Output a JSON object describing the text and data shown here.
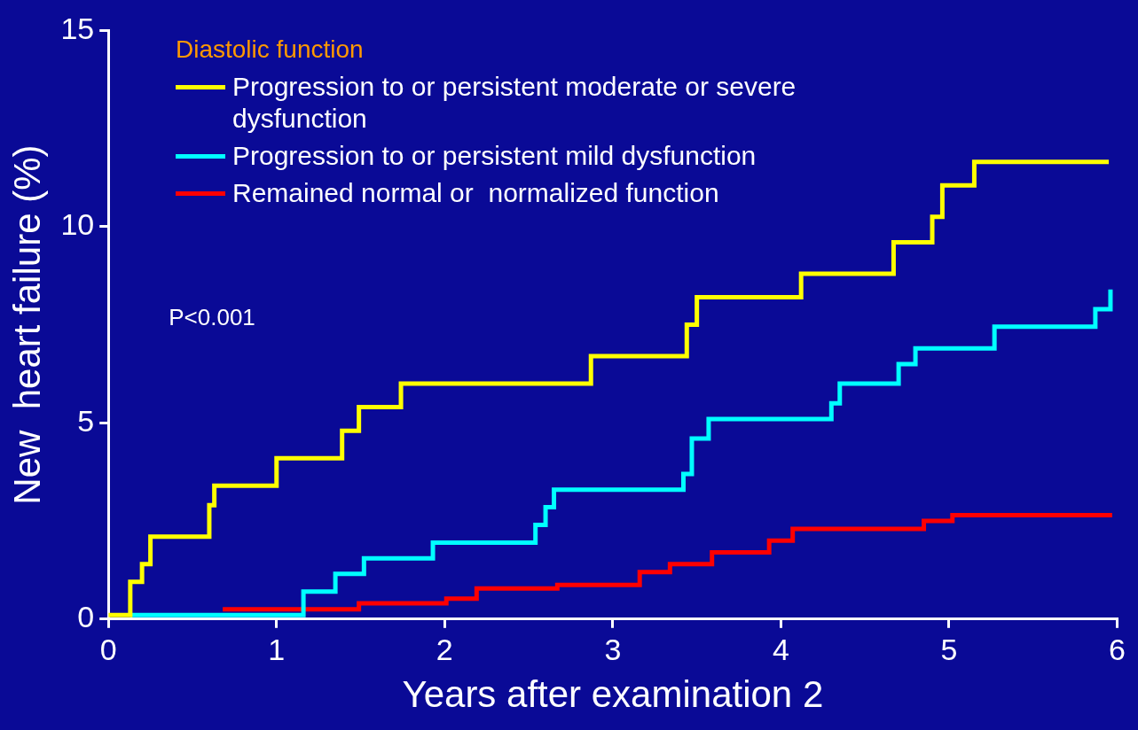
{
  "chart_data": {
    "type": "step",
    "xlabel": "Years after examination 2",
    "ylabel": "New  heart failure (%)",
    "legend_title": "Diastolic function",
    "legend": "top left",
    "grid": false,
    "xlim": [
      0,
      6
    ],
    "xticks": [
      0,
      1,
      2,
      3,
      4,
      5,
      6
    ],
    "ylim": [
      0,
      15
    ],
    "yticks": [
      0,
      5,
      10,
      15
    ],
    "annotations": [
      "P<0.001"
    ],
    "series": [
      {
        "name": "Progression to or persistent moderate or severe dysfunction",
        "color": "#ffff00",
        "x": [
          0,
          0.13,
          0.2,
          0.25,
          0.6,
          0.63,
          1.0,
          1.39,
          1.49,
          1.74,
          2.87,
          3.44,
          3.5,
          4.12,
          4.67,
          4.9,
          4.96,
          5.15,
          5.95
        ],
        "values": [
          0.1,
          0.95,
          1.4,
          2.1,
          2.9,
          3.4,
          4.1,
          4.8,
          5.4,
          6.0,
          6.7,
          7.5,
          8.2,
          8.8,
          9.6,
          10.25,
          11.05,
          11.65,
          11.65
        ]
      },
      {
        "name": "Progression to or persistent mild dysfunction",
        "color": "#00ffff",
        "x": [
          0.13,
          1.16,
          1.35,
          1.52,
          1.93,
          2.54,
          2.6,
          2.65,
          3.42,
          3.47,
          3.57,
          4.3,
          4.35,
          4.7,
          4.8,
          5.27,
          5.87,
          5.96
        ],
        "values": [
          0.1,
          0.7,
          1.15,
          1.55,
          1.95,
          2.4,
          2.85,
          3.3,
          3.7,
          4.6,
          5.1,
          5.5,
          6.0,
          6.5,
          6.9,
          7.45,
          7.9,
          8.4
        ]
      },
      {
        "name": "Remained normal or  normalized function",
        "color": "#ff0000",
        "x": [
          0.68,
          1.49,
          2.01,
          2.19,
          2.67,
          3.16,
          3.34,
          3.59,
          3.93,
          4.07,
          4.85,
          5.02,
          5.97
        ],
        "values": [
          0.25,
          0.4,
          0.52,
          0.78,
          0.87,
          1.2,
          1.4,
          1.7,
          2.0,
          2.3,
          2.5,
          2.65,
          2.65
        ]
      }
    ]
  }
}
